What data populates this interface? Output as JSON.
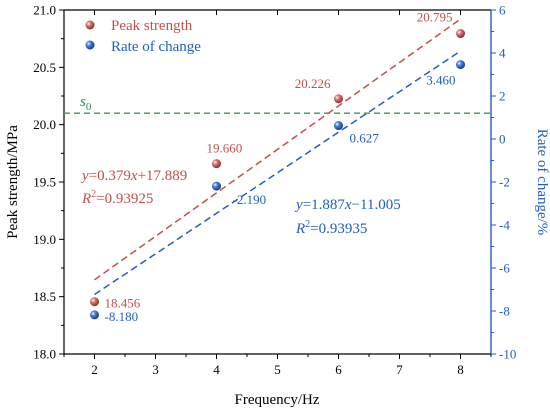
{
  "colors": {
    "red": "#c0504d",
    "blue": "#1f5fc0",
    "green": "#3a9a5a",
    "axis_left": "#000000",
    "axis_right": "#1f5fc0"
  },
  "chart_data": {
    "type": "scatter",
    "xlabel": "Frequency/Hz",
    "ylabel": "Peak strength/MPa",
    "y2label": "Rate of change/%",
    "xlim": [
      1.5,
      8.5
    ],
    "ylim": [
      18.0,
      21.0
    ],
    "y2lim": [
      -10,
      6
    ],
    "x_ticks": [
      "2",
      "3",
      "4",
      "5",
      "6",
      "7",
      "8"
    ],
    "y_ticks": [
      "18.0",
      "18.5",
      "19.0",
      "19.5",
      "20.0",
      "20.5",
      "21.0"
    ],
    "y2_ticks": [
      "-10",
      "-8",
      "-6",
      "-4",
      "-2",
      "0",
      "2",
      "4",
      "6"
    ],
    "legend_position": "top-left",
    "series": [
      {
        "name": "Peak strength",
        "axis": "left",
        "color": "#c0504d",
        "x": [
          2,
          4,
          6,
          8
        ],
        "y": [
          18.456,
          19.66,
          20.226,
          20.795
        ],
        "labels": [
          "18.456",
          "19.660",
          "20.226",
          "20.795"
        ],
        "fit": {
          "slope": 0.379,
          "intercept": 17.889,
          "x_range": [
            2,
            8
          ],
          "equation_parts": [
            "y",
            "=0.379",
            "x",
            "+17.889"
          ],
          "r2_parts": [
            "R",
            "2",
            "=0.93925"
          ]
        }
      },
      {
        "name": "Rate of change",
        "axis": "right",
        "color": "#1f5fc0",
        "x": [
          2,
          4,
          6,
          8
        ],
        "y": [
          -8.18,
          -2.19,
          0.627,
          3.46
        ],
        "labels": [
          "-8.180",
          "-2.190",
          "0.627",
          "3.460"
        ],
        "fit": {
          "slope": 1.887,
          "intercept": -11.005,
          "x_range": [
            2,
            8
          ],
          "equation_parts": [
            "y",
            "=1.887",
            "x",
            "−11.005"
          ],
          "r2_parts": [
            "R",
            "2",
            "=0.93935"
          ]
        }
      }
    ],
    "reference_line": {
      "label_base": "s",
      "label_sub": "0",
      "y": 20.1,
      "axis": "left",
      "style": "dashed",
      "color": "#3a9a5a"
    }
  }
}
